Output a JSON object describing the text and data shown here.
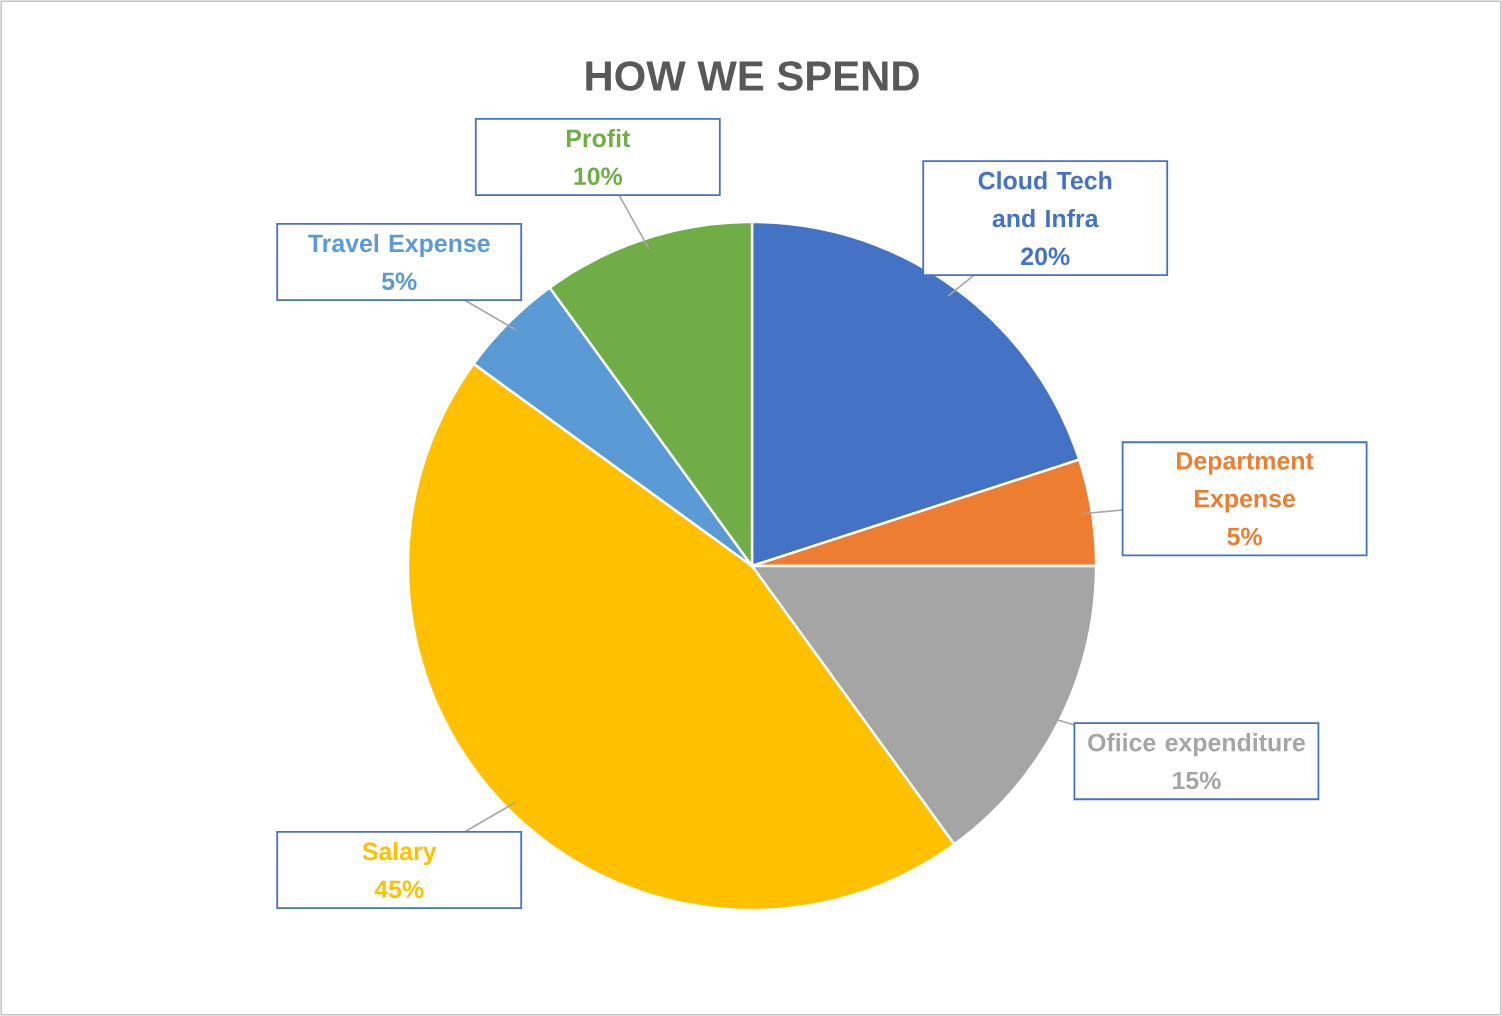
{
  "chart_data": {
    "type": "pie",
    "title": "HOW WE SPEND",
    "categories": [
      "Cloud Tech and Infra",
      "Department Expense",
      "Ofiice expenditure",
      "Salary",
      "Travel Expense",
      "Profit"
    ],
    "values": [
      20,
      5,
      15,
      45,
      5,
      10
    ],
    "colors": [
      "#4472c4",
      "#ed7d31",
      "#a5a5a5",
      "#ffc000",
      "#5b9bd5",
      "#70ad47"
    ],
    "value_labels": [
      "20%",
      "5%",
      "15%",
      "45%",
      "5%",
      "10%"
    ]
  }
}
